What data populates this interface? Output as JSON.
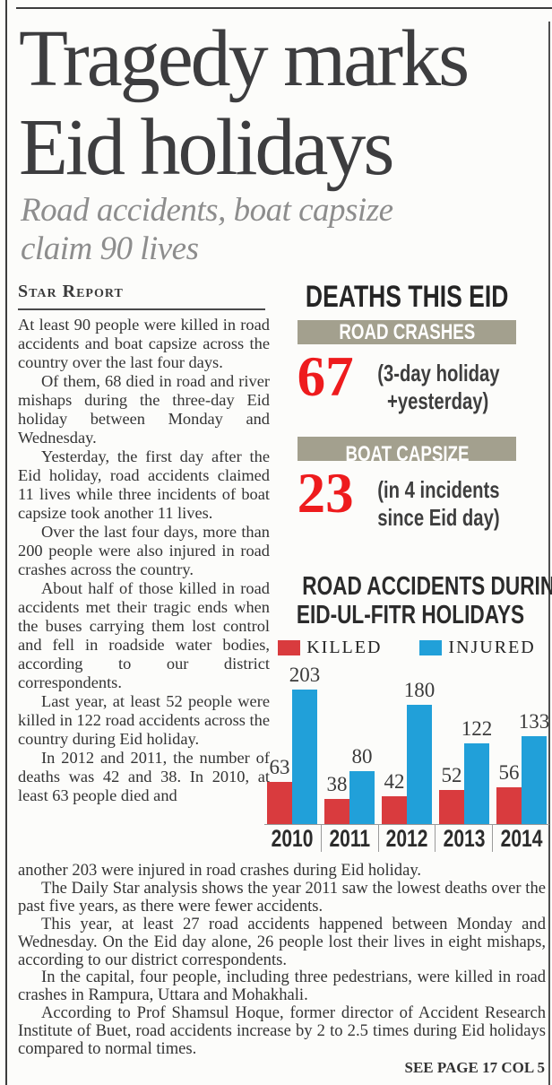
{
  "article": {
    "headline_lines": [
      "Tragedy marks",
      "Eid holidays"
    ],
    "subhead_lines": [
      "Road accidents, boat capsize",
      "claim 90 lives"
    ],
    "byline": "Star Report",
    "column_paragraphs": [
      "At least 90 people were killed in road accidents and boat capsize across the country over the last four days.",
      "Of them, 68 died in road and river mishaps during the three-day Eid holiday between Monday and Wednesday.",
      "Yesterday, the first day after the Eid holiday, road accidents claimed 11 lives while three incidents of boat capsize took another 11 lives.",
      "Over the last four days, more than 200 people were also injured in road crashes across the country.",
      "About half of those killed in road accidents met their tragic ends when the buses carrying them lost control and fell in roadside water bodies, according to our district correspondents.",
      "Last year, at least 52 people were killed in 122 road accidents across the country during Eid holiday.",
      "In 2012 and 2011, the number of deaths was 42 and 38. In 2010, at least 63 people died and"
    ],
    "bottom_paragraphs": [
      "another 203 were injured in road crashes during Eid holiday.",
      "The Daily Star analysis shows the year 2011 saw the lowest deaths over the past five years, as there were fewer accidents.",
      "This year, at least 27 road accidents happened between Monday and Wednesday. On the Eid day alone, 26 people lost their lives in eight mishaps, according to our district correspondents.",
      "In the capital, four people, including three pedestrians, were killed in road crashes in Rampura, Uttara and Mohakhali.",
      "According to Prof Shamsul Hoque, former director of Accident Research Institute of Buet, road accidents increase by 2 to 2.5 times during Eid holidays compared to normal times."
    ],
    "continuation": "SEE PAGE 17 COL 5"
  },
  "infographic": {
    "title": "DEATHS THIS EID",
    "sections": [
      {
        "label": "ROAD CRASHES",
        "value": "67",
        "note_line1": "(3-day holiday",
        "note_line2": "+yesterday)"
      },
      {
        "label": "BOAT CAPSIZE",
        "value": "23",
        "note_line1": "(in 4 incidents",
        "note_line2": "since Eid day)"
      }
    ]
  },
  "chart_data": {
    "type": "bar",
    "title": "ROAD ACCIDENTS DURING EID-UL-FITR HOLIDAYS",
    "title_lines": [
      "ROAD ACCIDENTS DURING",
      "EID-UL-FITR HOLIDAYS"
    ],
    "categories": [
      "2010",
      "2011",
      "2012",
      "2013",
      "2014"
    ],
    "series": [
      {
        "name": "KILLED",
        "color": "#d93b3e",
        "values": [
          63,
          38,
          42,
          52,
          56
        ]
      },
      {
        "name": "INJURED",
        "color": "#21a0d9",
        "values": [
          203,
          80,
          180,
          122,
          133
        ]
      }
    ],
    "ylim": [
      0,
      203
    ],
    "value_labels": true,
    "legend_position": "top",
    "grid": false,
    "xlabel": "",
    "ylabel": ""
  },
  "colors": {
    "accent_red": "#ee1b1d",
    "bar_red": "#d93b3e",
    "bar_blue": "#21a0d9",
    "olive": "#a3a08e",
    "headline_gray": "#3d3d3f"
  }
}
